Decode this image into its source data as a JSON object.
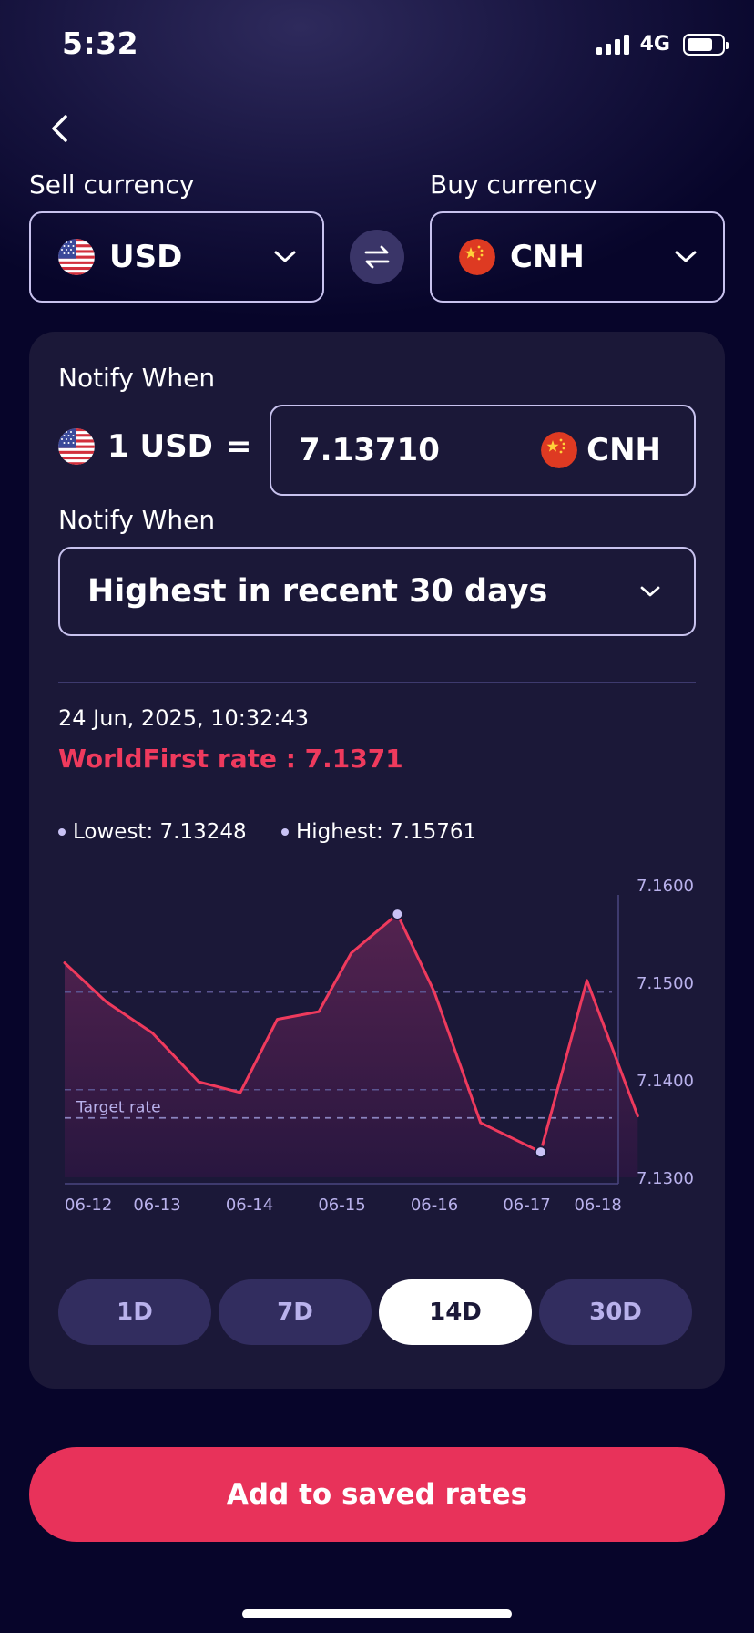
{
  "status_bar": {
    "time": "5:32",
    "network": "4G",
    "battery_level": 0.75
  },
  "header": {
    "back_icon": "chevron-left-icon"
  },
  "sell": {
    "label": "Sell currency",
    "code": "USD",
    "flag_icon": "us-flag-icon"
  },
  "buy": {
    "label": "Buy currency",
    "code": "CNH",
    "flag_icon": "cn-flag-icon"
  },
  "swap_icon": "swap-arrows-icon",
  "notify": {
    "label_rate": "Notify When",
    "base_amount": "1 USD",
    "equals": "=",
    "rate_value": "7.13710",
    "rate_currency": "CNH",
    "label_condition": "Notify When",
    "condition": "Highest in recent 30 days"
  },
  "market": {
    "timestamp": "24 Jun, 2025, 10:32:43",
    "worldfirst_rate": "WorldFirst rate : 7.1371",
    "lowest": "Lowest: 7.13248",
    "highest": "Highest: 7.15761"
  },
  "chart_data": {
    "type": "area",
    "x": [
      "06-12",
      "06-12.5",
      "06-13",
      "06-13.5",
      "06-14",
      "06-14.5",
      "06-15",
      "06-15.3",
      "06-15.7",
      "06-16",
      "06-16.5",
      "06-17",
      "06-17.5",
      "06-18",
      "06-18.3"
    ],
    "x_tick_labels": [
      "06-12",
      "06-13",
      "06-14",
      "06-15",
      "06-16",
      "06-17",
      "06-18"
    ],
    "points": [
      {
        "x": 0.0,
        "y": 7.152
      },
      {
        "x": 0.45,
        "y": 7.148
      },
      {
        "x": 0.95,
        "y": 7.1448
      },
      {
        "x": 1.45,
        "y": 7.1398
      },
      {
        "x": 1.9,
        "y": 7.1387
      },
      {
        "x": 2.3,
        "y": 7.1462
      },
      {
        "x": 2.75,
        "y": 7.147
      },
      {
        "x": 3.1,
        "y": 7.153
      },
      {
        "x": 3.6,
        "y": 7.157
      },
      {
        "x": 4.0,
        "y": 7.149
      },
      {
        "x": 4.5,
        "y": 7.1356
      },
      {
        "x": 5.15,
        "y": 7.1326
      },
      {
        "x": 5.65,
        "y": 7.1502
      },
      {
        "x": 6.2,
        "y": 7.1363
      }
    ],
    "x_tick_positions": [
      0.22,
      1.0,
      2.0,
      3.0,
      4.0,
      5.0,
      5.77
    ],
    "y_ticks": [
      "7.1600",
      "7.1500",
      "7.1400",
      "7.1300"
    ],
    "ylim": [
      7.13,
      7.16
    ],
    "gridlines": [
      7.149,
      7.139
    ],
    "target_label": "Target rate",
    "target_rate": 7.1361,
    "highest_point_index": 8,
    "lowest_point_index": 11,
    "colors": {
      "line": "#ef3a5d",
      "fill_top": "#5a2452",
      "fill_bottom": "#2a1640",
      "grid": "#5b5591",
      "marker": "#c9c2f5",
      "tick_text": "#b9b1ec"
    }
  },
  "periods": {
    "items": [
      {
        "label": "1D",
        "active": false
      },
      {
        "label": "7D",
        "active": false
      },
      {
        "label": "14D",
        "active": true
      },
      {
        "label": "30D",
        "active": false
      }
    ]
  },
  "actions": {
    "save_label": "Add to saved rates"
  }
}
